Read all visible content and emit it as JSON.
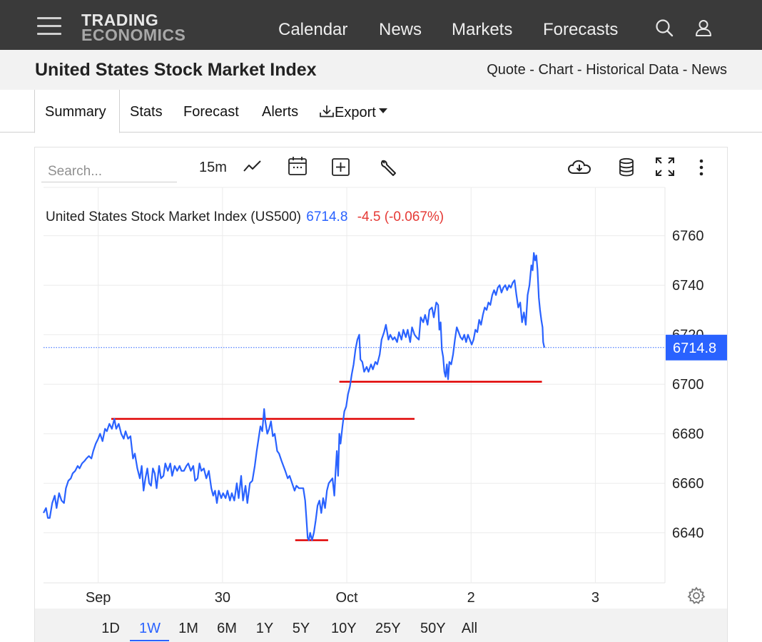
{
  "header": {
    "brand_line1": "TRADING",
    "brand_line2": "ECONOMICS",
    "nav": [
      "Calendar",
      "News",
      "Markets",
      "Forecasts"
    ]
  },
  "subheader": {
    "title": "United States Stock Market Index",
    "crumbs": [
      "Quote",
      "Chart",
      "Historical Data",
      "News"
    ],
    "separator": " - "
  },
  "tabs": {
    "summary": "Summary",
    "stats": "Stats",
    "forecast": "Forecast",
    "alerts": "Alerts",
    "export": "Export"
  },
  "toolbar": {
    "search_placeholder": "Search...",
    "interval": "15m"
  },
  "legend": {
    "name": "United States Stock Market Index (US500)",
    "price": "6714.8",
    "change": "-4.5 (-0.067%)",
    "price_color": "#2962ff",
    "change_color": "#e53935"
  },
  "ranges": [
    "1D",
    "1W",
    "1M",
    "6M",
    "1Y",
    "5Y",
    "10Y",
    "25Y",
    "50Y",
    "All"
  ],
  "selected_range": "1W",
  "chart_data": {
    "type": "line",
    "y_ticks": [
      6640,
      6660,
      6680,
      6700,
      6720,
      6740,
      6760
    ],
    "ylim": [
      6623,
      6767
    ],
    "x_ticks": [
      "Sep",
      "30",
      "Oct",
      "2",
      "3"
    ],
    "x_tick_pos": [
      0.088,
      0.288,
      0.488,
      0.688,
      0.888
    ],
    "last_value_label": "6714.8",
    "last_value": 6714.8,
    "line_color": "#2962ff",
    "series": [
      {
        "values": [
          [
            0.0,
            6648
          ],
          [
            0.004,
            6650
          ],
          [
            0.007,
            6646
          ],
          [
            0.01,
            6646
          ],
          [
            0.014,
            6652
          ],
          [
            0.018,
            6655
          ],
          [
            0.021,
            6650
          ],
          [
            0.025,
            6656
          ],
          [
            0.029,
            6653
          ],
          [
            0.033,
            6652
          ],
          [
            0.036,
            6658
          ],
          [
            0.04,
            6661
          ],
          [
            0.044,
            6662
          ],
          [
            0.047,
            6664
          ],
          [
            0.051,
            6665
          ],
          [
            0.055,
            6667
          ],
          [
            0.058,
            6666
          ],
          [
            0.062,
            6668
          ],
          [
            0.066,
            6669
          ],
          [
            0.069,
            6670
          ],
          [
            0.073,
            6671
          ],
          [
            0.077,
            6670
          ],
          [
            0.08,
            6673
          ],
          [
            0.084,
            6676
          ],
          [
            0.088,
            6678
          ],
          [
            0.091,
            6680
          ],
          [
            0.095,
            6677
          ],
          [
            0.099,
            6682
          ],
          [
            0.102,
            6681
          ],
          [
            0.106,
            6684
          ],
          [
            0.11,
            6682
          ],
          [
            0.114,
            6686
          ],
          [
            0.117,
            6682
          ],
          [
            0.121,
            6684
          ],
          [
            0.125,
            6680
          ],
          [
            0.129,
            6678
          ],
          [
            0.132,
            6681
          ],
          [
            0.136,
            6678
          ],
          [
            0.14,
            6679
          ],
          [
            0.144,
            6670
          ],
          [
            0.147,
            6672
          ],
          [
            0.151,
            6666
          ],
          [
            0.155,
            6662
          ],
          [
            0.158,
            6667
          ],
          [
            0.161,
            6657
          ],
          [
            0.164,
            6662
          ],
          [
            0.167,
            6666
          ],
          [
            0.17,
            6660
          ],
          [
            0.173,
            6659
          ],
          [
            0.176,
            6666
          ],
          [
            0.179,
            6664
          ],
          [
            0.182,
            6658
          ],
          [
            0.186,
            6667
          ],
          [
            0.189,
            6662
          ],
          [
            0.193,
            6663
          ],
          [
            0.196,
            6668
          ],
          [
            0.2,
            6665
          ],
          [
            0.204,
            6668
          ],
          [
            0.207,
            6663
          ],
          [
            0.211,
            6667
          ],
          [
            0.215,
            6665
          ],
          [
            0.219,
            6667
          ],
          [
            0.222,
            6665
          ],
          [
            0.226,
            6665
          ],
          [
            0.23,
            6667
          ],
          [
            0.233,
            6668
          ],
          [
            0.237,
            6665
          ],
          [
            0.241,
            6667
          ],
          [
            0.244,
            6661
          ],
          [
            0.248,
            6662
          ],
          [
            0.251,
            6668
          ],
          [
            0.254,
            6665
          ],
          [
            0.258,
            6666
          ],
          [
            0.262,
            6662
          ],
          [
            0.266,
            6665
          ],
          [
            0.27,
            6658
          ],
          [
            0.273,
            6655
          ],
          [
            0.276,
            6657
          ],
          [
            0.279,
            6652
          ],
          [
            0.282,
            6657
          ],
          [
            0.286,
            6654
          ],
          [
            0.289,
            6656
          ],
          [
            0.293,
            6654
          ],
          [
            0.296,
            6657
          ],
          [
            0.3,
            6653
          ],
          [
            0.303,
            6656
          ],
          [
            0.307,
            6653
          ],
          [
            0.311,
            6660
          ],
          [
            0.314,
            6654
          ],
          [
            0.318,
            6663
          ],
          [
            0.321,
            6653
          ],
          [
            0.325,
            6659
          ],
          [
            0.328,
            6652
          ],
          [
            0.332,
            6660
          ],
          [
            0.336,
            6661
          ],
          [
            0.34,
            6667
          ],
          [
            0.343,
            6673
          ],
          [
            0.346,
            6678
          ],
          [
            0.349,
            6683
          ],
          [
            0.352,
            6681
          ],
          [
            0.355,
            6690
          ],
          [
            0.357,
            6685
          ],
          [
            0.36,
            6680
          ],
          [
            0.363,
            6682
          ],
          [
            0.366,
            6685
          ],
          [
            0.369,
            6679
          ],
          [
            0.372,
            6680
          ],
          [
            0.376,
            6673
          ],
          [
            0.379,
            6672
          ],
          [
            0.383,
            6669
          ],
          [
            0.386,
            6667
          ],
          [
            0.389,
            6665
          ],
          [
            0.393,
            6662
          ],
          [
            0.396,
            6663
          ],
          [
            0.4,
            6660
          ],
          [
            0.404,
            6657
          ],
          [
            0.407,
            6659
          ],
          [
            0.411,
            6658
          ],
          [
            0.414,
            6658
          ],
          [
            0.418,
            6658
          ],
          [
            0.421,
            6653
          ],
          [
            0.423,
            6646
          ],
          [
            0.425,
            6638
          ],
          [
            0.427,
            6637
          ],
          [
            0.429,
            6640
          ],
          [
            0.432,
            6637
          ],
          [
            0.435,
            6640
          ],
          [
            0.438,
            6645
          ],
          [
            0.441,
            6651
          ],
          [
            0.444,
            6653
          ],
          [
            0.447,
            6648
          ],
          [
            0.45,
            6654
          ],
          [
            0.453,
            6650
          ],
          [
            0.456,
            6657
          ],
          [
            0.459,
            6660
          ],
          [
            0.462,
            6661
          ],
          [
            0.465,
            6662
          ],
          [
            0.468,
            6655
          ],
          [
            0.47,
            6665
          ],
          [
            0.472,
            6673
          ],
          [
            0.474,
            6663
          ],
          [
            0.476,
            6680
          ],
          [
            0.478,
            6676
          ],
          [
            0.481,
            6683
          ],
          [
            0.484,
            6689
          ],
          [
            0.487,
            6691
          ],
          [
            0.49,
            6696
          ],
          [
            0.493,
            6699
          ],
          [
            0.496,
            6704
          ],
          [
            0.499,
            6708
          ],
          [
            0.502,
            6714
          ],
          [
            0.505,
            6718
          ],
          [
            0.508,
            6720
          ],
          [
            0.51,
            6710
          ],
          [
            0.513,
            6709
          ],
          [
            0.516,
            6705
          ],
          [
            0.52,
            6707
          ],
          [
            0.523,
            6705
          ],
          [
            0.527,
            6708
          ],
          [
            0.53,
            6706
          ],
          [
            0.534,
            6709
          ],
          [
            0.537,
            6708
          ],
          [
            0.541,
            6712
          ],
          [
            0.544,
            6718
          ],
          [
            0.548,
            6721
          ],
          [
            0.551,
            6724
          ],
          [
            0.555,
            6718
          ],
          [
            0.558,
            6720
          ],
          [
            0.562,
            6718
          ],
          [
            0.565,
            6719
          ],
          [
            0.569,
            6717
          ],
          [
            0.572,
            6721
          ],
          [
            0.576,
            6718
          ],
          [
            0.579,
            6722
          ],
          [
            0.583,
            6719
          ],
          [
            0.586,
            6722
          ],
          [
            0.59,
            6717
          ],
          [
            0.593,
            6723
          ],
          [
            0.597,
            6720
          ],
          [
            0.6,
            6719
          ],
          [
            0.604,
            6718
          ],
          [
            0.607,
            6727
          ],
          [
            0.611,
            6725
          ],
          [
            0.614,
            6728
          ],
          [
            0.618,
            6724
          ],
          [
            0.621,
            6730
          ],
          [
            0.625,
            6731
          ],
          [
            0.628,
            6727
          ],
          [
            0.632,
            6733
          ],
          [
            0.635,
            6732
          ],
          [
            0.637,
            6722
          ],
          [
            0.639,
            6725
          ],
          [
            0.641,
            6714
          ],
          [
            0.643,
            6711
          ],
          [
            0.645,
            6705
          ],
          [
            0.647,
            6703
          ],
          [
            0.649,
            6708
          ],
          [
            0.651,
            6702
          ],
          [
            0.653,
            6709
          ],
          [
            0.656,
            6708
          ],
          [
            0.659,
            6712
          ],
          [
            0.662,
            6718
          ],
          [
            0.665,
            6723
          ],
          [
            0.668,
            6721
          ],
          [
            0.671,
            6719
          ],
          [
            0.674,
            6718
          ],
          [
            0.677,
            6720
          ],
          [
            0.68,
            6717
          ],
          [
            0.683,
            6720
          ],
          [
            0.686,
            6718
          ],
          [
            0.689,
            6716
          ],
          [
            0.692,
            6718
          ],
          [
            0.695,
            6722
          ],
          [
            0.698,
            6721
          ],
          [
            0.701,
            6726
          ],
          [
            0.704,
            6724
          ],
          [
            0.707,
            6728
          ],
          [
            0.71,
            6731
          ],
          [
            0.713,
            6730
          ],
          [
            0.716,
            6733
          ],
          [
            0.719,
            6732
          ],
          [
            0.722,
            6736
          ],
          [
            0.725,
            6738
          ],
          [
            0.728,
            6736
          ],
          [
            0.731,
            6739
          ],
          [
            0.734,
            6740
          ],
          [
            0.737,
            6737
          ],
          [
            0.74,
            6739
          ],
          [
            0.743,
            6740
          ],
          [
            0.746,
            6738
          ],
          [
            0.749,
            6740
          ],
          [
            0.752,
            6739
          ],
          [
            0.755,
            6741
          ],
          [
            0.758,
            6742
          ],
          [
            0.761,
            6736
          ],
          [
            0.764,
            6731
          ],
          [
            0.767,
            6733
          ],
          [
            0.77,
            6725
          ],
          [
            0.773,
            6729
          ],
          [
            0.776,
            6724
          ],
          [
            0.779,
            6736
          ],
          [
            0.782,
            6740
          ],
          [
            0.785,
            6748
          ],
          [
            0.787,
            6746
          ],
          [
            0.789,
            6753
          ],
          [
            0.791,
            6750
          ],
          [
            0.793,
            6752
          ],
          [
            0.795,
            6746
          ],
          [
            0.797,
            6735
          ],
          [
            0.799,
            6730
          ],
          [
            0.801,
            6726
          ],
          [
            0.803,
            6723
          ],
          [
            0.804,
            6717
          ],
          [
            0.806,
            6714.8
          ]
        ]
      }
    ],
    "annotations": [
      {
        "type": "hline",
        "y": 6686,
        "x_start": 0.109,
        "x_end": 0.597
      },
      {
        "type": "hline",
        "y": 6637,
        "x_start": 0.405,
        "x_end": 0.458
      },
      {
        "type": "hline",
        "y": 6701,
        "x_start": 0.476,
        "x_end": 0.802
      }
    ]
  }
}
